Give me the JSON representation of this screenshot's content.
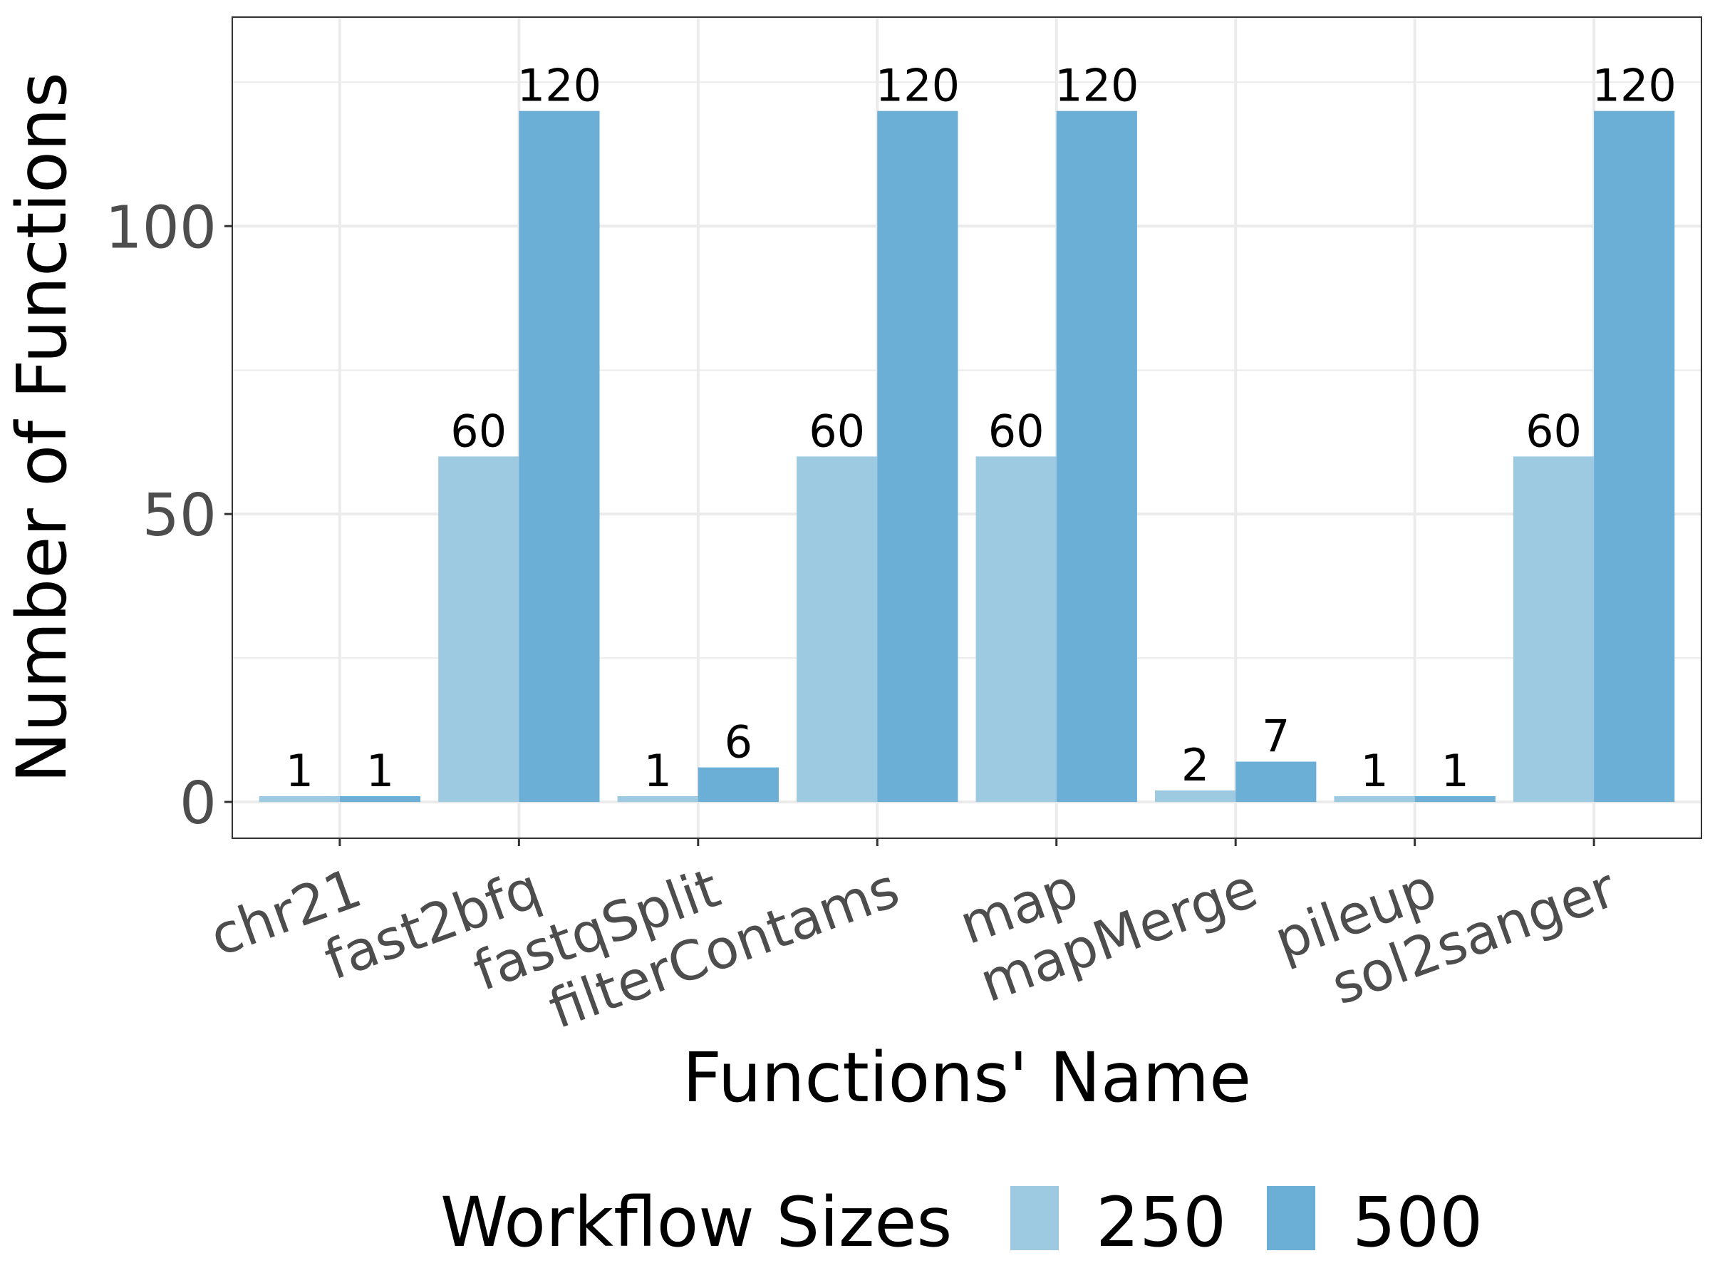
{
  "chart_data": {
    "type": "bar",
    "title": "",
    "xlabel": "Functions' Name",
    "ylabel": "Number of Functions",
    "categories": [
      "chr21",
      "fast2bfq",
      "fastqSplit",
      "filterContams",
      "map",
      "mapMerge",
      "pileup",
      "sol2sanger"
    ],
    "series": [
      {
        "name": "250",
        "color": "#9ecae1",
        "values": [
          1,
          60,
          1,
          60,
          60,
          2,
          1,
          60
        ]
      },
      {
        "name": "500",
        "color": "#6baed6",
        "values": [
          1,
          120,
          6,
          120,
          120,
          7,
          1,
          120
        ]
      }
    ],
    "yticks": [
      0,
      50,
      100
    ],
    "ylim": [
      -6.3,
      136.3
    ],
    "grid": true,
    "legend": {
      "title": "Workflow Sizes",
      "position": "bottom"
    }
  }
}
